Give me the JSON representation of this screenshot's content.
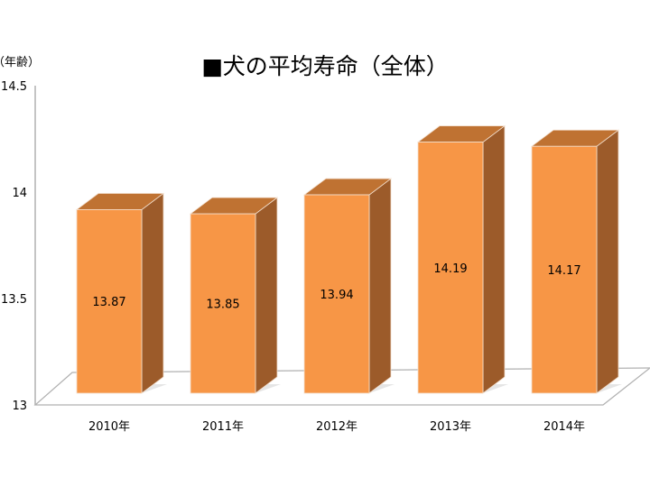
{
  "chart_data": {
    "type": "bar",
    "title": "■犬の平均寿命（全体）",
    "ylabel": "（年齢）",
    "xlabel": "",
    "categories": [
      "2010年",
      "2011年",
      "2012年",
      "2013年",
      "2014年"
    ],
    "values": [
      13.87,
      13.85,
      13.94,
      14.19,
      14.17
    ],
    "data_labels": [
      "13.87",
      "13.85",
      "13.94",
      "14.19",
      "14.17"
    ],
    "ylim": [
      13,
      14.5
    ],
    "yticks": [
      "13",
      "13.5",
      "14",
      "14.5"
    ],
    "ytick_values": [
      13,
      13.5,
      14,
      14.5
    ],
    "grid": false,
    "style": "3d-bar",
    "colors": {
      "front": "#f79646",
      "top": "#bf7232",
      "side": "#9c5b2a",
      "axis": "#b0b0b0"
    }
  }
}
